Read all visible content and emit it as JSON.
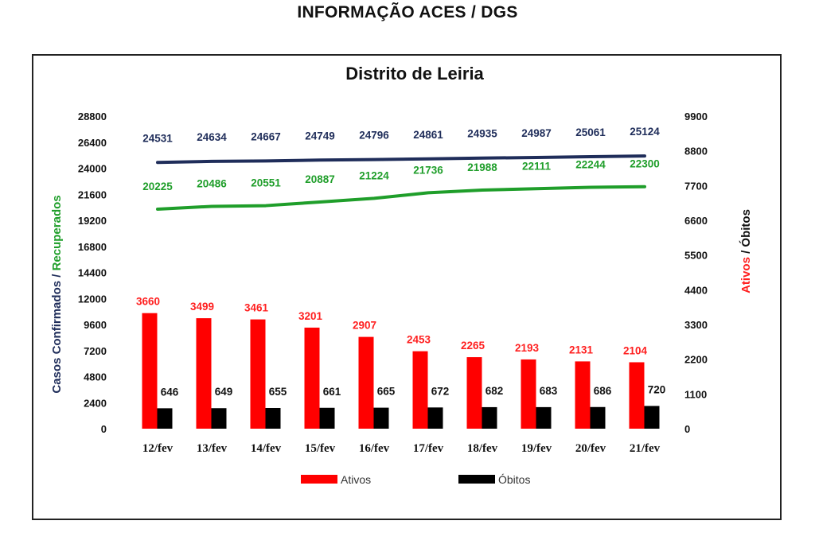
{
  "page": {
    "title": "INFORMAÇÃO ACES / DGS"
  },
  "chart_data": {
    "type": "bar+line",
    "title": "Distrito de Leiria",
    "categories": [
      "12/fev",
      "13/fev",
      "14/fev",
      "15/fev",
      "16/fev",
      "17/fev",
      "18/fev",
      "19/fev",
      "20/fev",
      "21/fev"
    ],
    "left_axis": {
      "title_part1": "Casos Confirmados",
      "title_sep": " / ",
      "title_part2": "Recuperados",
      "ticks": [
        0,
        2400,
        4800,
        7200,
        9600,
        12000,
        14400,
        16800,
        19200,
        21600,
        24000,
        26400,
        28800
      ],
      "range": [
        0,
        28800
      ]
    },
    "right_axis": {
      "title_part1": "Ativos",
      "title_sep": " / ",
      "title_part2": "Óbitos",
      "ticks": [
        0,
        1100,
        2200,
        3300,
        4400,
        5500,
        6600,
        7700,
        8800,
        9900
      ],
      "range": [
        0,
        9900
      ]
    },
    "lines": [
      {
        "name": "Casos Confirmados",
        "axis": "left",
        "color": "#1f2d5a",
        "values": [
          24531,
          24634,
          24667,
          24749,
          24796,
          24861,
          24935,
          24987,
          25061,
          25124
        ]
      },
      {
        "name": "Recuperados",
        "axis": "left",
        "color": "#1f9e2a",
        "values": [
          20225,
          20486,
          20551,
          20887,
          21224,
          21736,
          21988,
          22111,
          22244,
          22300
        ]
      }
    ],
    "bars": [
      {
        "name": "Ativos",
        "axis": "right",
        "color": "#ff0000",
        "values": [
          3660,
          3499,
          3461,
          3201,
          2907,
          2453,
          2265,
          2193,
          2131,
          2104
        ]
      },
      {
        "name": "Óbitos",
        "axis": "right",
        "color": "#000000",
        "values": [
          646,
          649,
          655,
          661,
          665,
          672,
          682,
          683,
          686,
          720
        ]
      }
    ],
    "legend": {
      "position": "bottom",
      "items": [
        "Ativos",
        "Óbitos"
      ]
    },
    "grid": false,
    "label_colors": {
      "confirmados": "#1f2d5a",
      "recuperados": "#1f9e2a",
      "ativos": "#ff2020",
      "obitos": "#111111"
    }
  }
}
